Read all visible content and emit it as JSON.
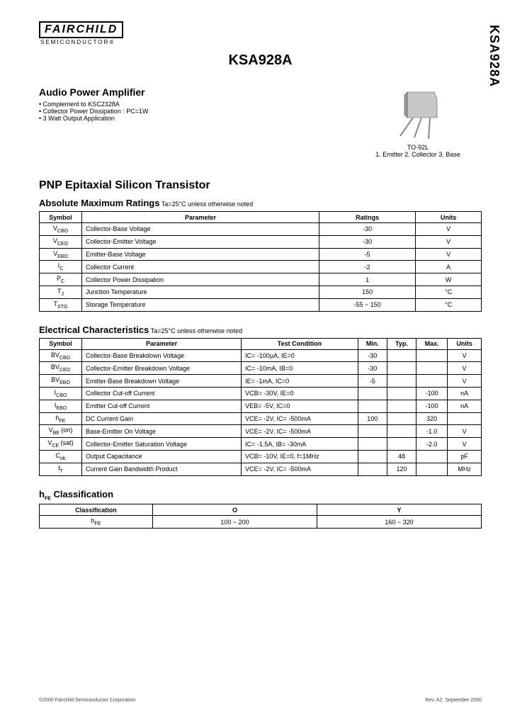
{
  "side_label": "KSA928A",
  "logo": {
    "brand": "FAIRCHILD",
    "sub": "SEMICONDUCTOR®"
  },
  "part_number": "KSA928A",
  "product": {
    "title": "Audio Power Amplifier",
    "bullets": [
      "Complement to KSC2328A",
      "Collector Power Dissipation : PC=1W",
      "3 Watt Output Application"
    ]
  },
  "package": {
    "name": "TO-92L",
    "pins": "1. Emitter  2. Collector  3. Base"
  },
  "transistor_type": "PNP Epitaxial Silicon Transistor",
  "abs_max": {
    "title": "Absolute Maximum Ratings",
    "condition": " Ta=25°C unless otherwise noted",
    "headers": [
      "Symbol",
      "Parameter",
      "Ratings",
      "Units"
    ],
    "rows": [
      {
        "sym": "V",
        "sub": "CBO",
        "param": "Collector-Base Voltage",
        "rating": "-30",
        "unit": "V"
      },
      {
        "sym": "V",
        "sub": "CEO",
        "param": "Collector-Emitter Voltage",
        "rating": "-30",
        "unit": "V"
      },
      {
        "sym": "V",
        "sub": "EBO",
        "param": "Emitter-Base Voltage",
        "rating": "-5",
        "unit": "V"
      },
      {
        "sym": "I",
        "sub": "C",
        "param": "Collector Current",
        "rating": "-2",
        "unit": "A"
      },
      {
        "sym": "P",
        "sub": "C",
        "param": "Collector Power Dissipation",
        "rating": "1",
        "unit": "W"
      },
      {
        "sym": "T",
        "sub": "J",
        "param": "Junction Temperature",
        "rating": "150",
        "unit": "°C"
      },
      {
        "sym": "T",
        "sub": "STG",
        "param": "Storage Temperature",
        "rating": "-55 ~ 150",
        "unit": "°C"
      }
    ]
  },
  "elec": {
    "title": "Electrical Characteristics",
    "condition": " Ta=25°C unless otherwise noted",
    "headers": [
      "Symbol",
      "Parameter",
      "Test Condition",
      "Min.",
      "Typ.",
      "Max.",
      "Units"
    ],
    "rows": [
      {
        "sym": "BV",
        "sub": "CBO",
        "param": "Collector-Base Breakdown Voltage",
        "cond": "IC= -100µA, IE=0",
        "min": "-30",
        "typ": "",
        "max": "",
        "unit": "V"
      },
      {
        "sym": "BV",
        "sub": "CEO",
        "param": "Collector-Emitter Breakdown Voltage",
        "cond": "IC= -10mA, IB=0",
        "min": "-30",
        "typ": "",
        "max": "",
        "unit": "V"
      },
      {
        "sym": "BV",
        "sub": "EBO",
        "param": "Emitter-Base Breakdown Voltage",
        "cond": "IE= -1mA, IC=0",
        "min": "-5",
        "typ": "",
        "max": "",
        "unit": "V"
      },
      {
        "sym": "I",
        "sub": "CBO",
        "param": "Collector Cut-off Current",
        "cond": "VCB= -30V, IE=0",
        "min": "",
        "typ": "",
        "max": "-100",
        "unit": "nA"
      },
      {
        "sym": "I",
        "sub": "EBO",
        "param": "Emitter Cut-off Current",
        "cond": "VEB= -5V, IC=0",
        "min": "",
        "typ": "",
        "max": "-100",
        "unit": "nA"
      },
      {
        "sym": "h",
        "sub": "FE",
        "param": "DC Current Gain",
        "cond": "VCE= -2V, IC= -500mA",
        "min": "100",
        "typ": "",
        "max": "320",
        "unit": ""
      },
      {
        "sym": "V",
        "sub": "BE",
        "suf": " (on)",
        "param": "Base-Emitter On Voltage",
        "cond": "VCE= -2V, IC= -500mA",
        "min": "",
        "typ": "",
        "max": "-1.0",
        "unit": "V"
      },
      {
        "sym": "V",
        "sub": "CE",
        "suf": " (sat)",
        "param": "Collector-Emitter Saturation Voltage",
        "cond": "IC= -1.5A, IB= -30mA",
        "min": "",
        "typ": "",
        "max": "-2.0",
        "unit": "V"
      },
      {
        "sym": "C",
        "sub": "ob",
        "param": "Output Capacitance",
        "cond": "VCB= -10V, IE=0, f=1MHz",
        "min": "",
        "typ": "48",
        "max": "",
        "unit": "pF"
      },
      {
        "sym": "f",
        "sub": "T",
        "param": "Current Gain Bandwidth Product",
        "cond": "VCE= -2V, IC= -500mA",
        "min": "",
        "typ": "120",
        "max": "",
        "unit": "MHz"
      }
    ]
  },
  "hfe": {
    "title": "hFE Classification",
    "headers": [
      "Classification",
      "O",
      "Y"
    ],
    "row_label": "hFE",
    "cells": [
      "100 ~ 200",
      "160 ~ 320"
    ]
  },
  "footer": {
    "left": "©2000 Fairchild Semiconductor Corporation",
    "right": "Rev. A2, September 2000"
  }
}
